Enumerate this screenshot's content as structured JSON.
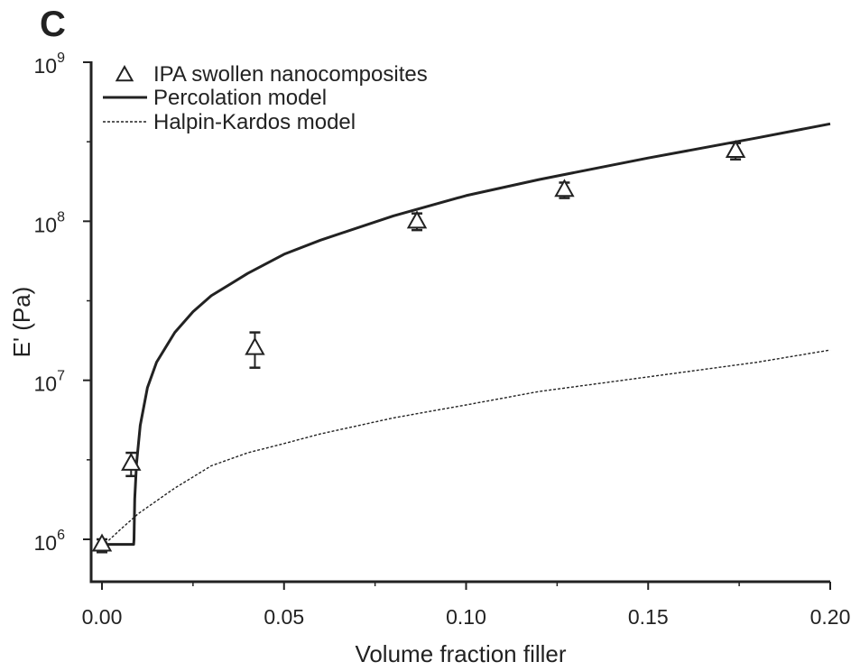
{
  "chart_data": {
    "type": "scatter",
    "panel_label": "C",
    "xlabel": "Volume fraction filler",
    "ylabel": "E' (Pa)",
    "xlim": [
      0.0,
      0.2
    ],
    "ylim": [
      1000000.0,
      1000000000.0
    ],
    "y_scale": "log",
    "x_ticks": [
      0.0,
      0.05,
      0.1,
      0.15,
      0.2
    ],
    "x_tick_labels": [
      "0.00",
      "0.05",
      "0.10",
      "0.15",
      "0.20"
    ],
    "y_ticks": [
      1000000.0,
      10000000.0,
      100000000.0,
      1000000000.0
    ],
    "y_tick_labels": [
      {
        "base": "10",
        "exp": "6"
      },
      {
        "base": "10",
        "exp": "7"
      },
      {
        "base": "10",
        "exp": "8"
      },
      {
        "base": "10",
        "exp": "9"
      }
    ],
    "grid": false,
    "legend_position": "top-left",
    "series": [
      {
        "name": "IPA swollen nanocomposites",
        "kind": "points",
        "marker": "open-triangle",
        "points": [
          {
            "x": 0.0,
            "y": 930000,
            "err_low": 830000,
            "err_high": 1000000
          },
          {
            "x": 0.008,
            "y": 3000000,
            "err_low": 2500000,
            "err_high": 3500000
          },
          {
            "x": 0.042,
            "y": 16000000,
            "err_low": 12000000,
            "err_high": 20000000
          },
          {
            "x": 0.0865,
            "y": 100000000,
            "err_low": 88000000,
            "err_high": 112000000
          },
          {
            "x": 0.127,
            "y": 158000000,
            "err_low": 140000000,
            "err_high": 175000000
          },
          {
            "x": 0.174,
            "y": 278000000,
            "err_low": 245000000,
            "err_high": 310000000
          }
        ]
      },
      {
        "name": "Percolation model",
        "kind": "line",
        "style": "solid",
        "x": [
          0.0,
          0.0087,
          0.0088,
          0.009,
          0.0095,
          0.0105,
          0.0125,
          0.015,
          0.02,
          0.025,
          0.03,
          0.04,
          0.05,
          0.06,
          0.08,
          0.1,
          0.12,
          0.15,
          0.18,
          0.2
        ],
        "y": [
          930000,
          930000,
          1000000,
          1800000,
          3000000,
          5200000,
          9000000,
          13000000,
          20000000,
          27000000,
          34000000,
          47000000,
          62000000,
          76000000,
          108000000,
          145000000,
          183000000,
          250000000,
          335000000,
          410000000
        ]
      },
      {
        "name": "Halpin-Kardos model",
        "kind": "line",
        "style": "dashed",
        "x": [
          0.0,
          0.005,
          0.01,
          0.02,
          0.03,
          0.04,
          0.05,
          0.06,
          0.08,
          0.1,
          0.12,
          0.15,
          0.18,
          0.2
        ],
        "y": [
          900000,
          1150000,
          1450000,
          2100000,
          2900000,
          3500000,
          4000000,
          4600000,
          5800000,
          7000000,
          8500000,
          10500000,
          13000000,
          15500000
        ]
      }
    ]
  }
}
